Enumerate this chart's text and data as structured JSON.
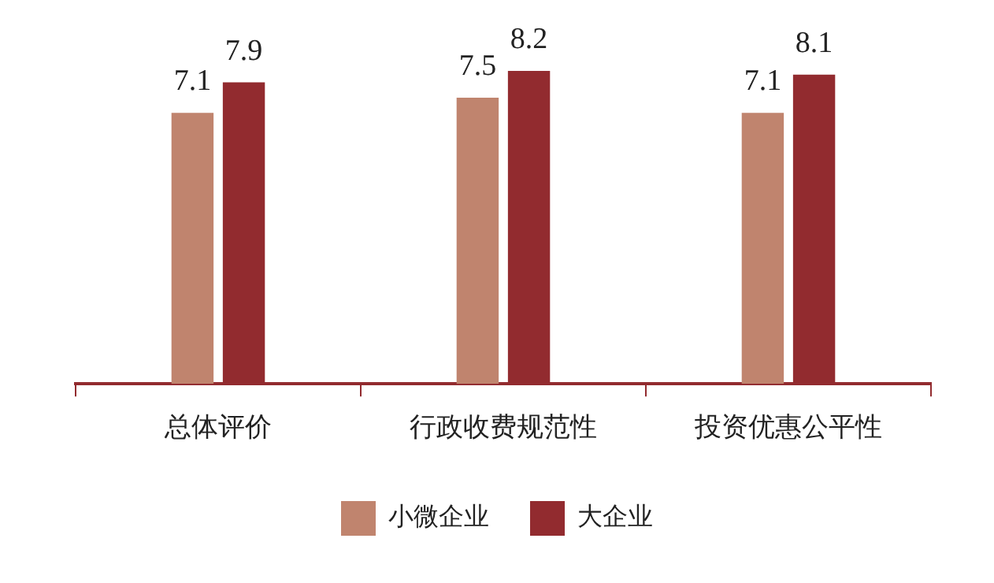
{
  "chart_data": {
    "type": "bar",
    "categories": [
      "总体评价",
      "行政收费规范性",
      "投资优惠公平性"
    ],
    "series": [
      {
        "name": "小微企业",
        "color": "#c0846e",
        "values": [
          7.1,
          7.5,
          7.1
        ]
      },
      {
        "name": "大企业",
        "color": "#922b2f",
        "values": [
          7.9,
          8.2,
          8.1
        ]
      }
    ],
    "tick_labels": "x",
    "data_labels": true,
    "grid": false,
    "legend": "bottom"
  }
}
